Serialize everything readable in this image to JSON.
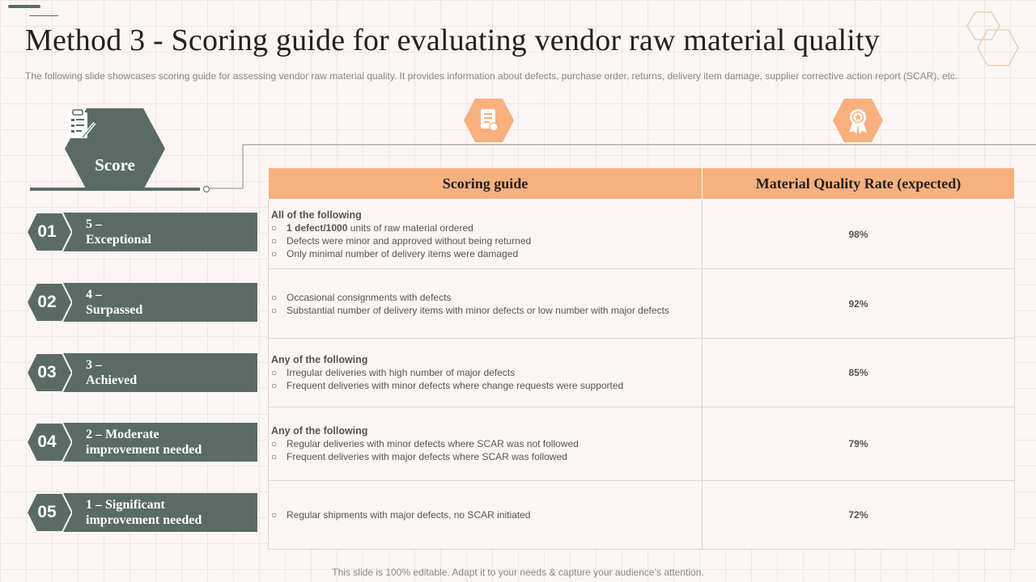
{
  "header": {
    "title": "Method 3 - Scoring guide for evaluating vendor raw material quality",
    "subtitle": "The following slide showcases scoring guide for assessing vendor raw material quality. It provides information about defects, purchase order, returns, delivery item damage, supplier corrective action report (SCAR), etc."
  },
  "score": {
    "label": "Score",
    "icon": "clipboard-pen-icon"
  },
  "levels": [
    {
      "num": "01",
      "line1": "5 –",
      "line2": "Exceptional"
    },
    {
      "num": "02",
      "line1": "4 –",
      "line2": "Surpassed"
    },
    {
      "num": "03",
      "line1": "3 –",
      "line2": "Achieved"
    },
    {
      "num": "04",
      "line1": "2 – Moderate",
      "line2": "improvement needed"
    },
    {
      "num": "05",
      "line1": "1 – Significant",
      "line2": "improvement needed"
    }
  ],
  "table": {
    "col1_header": "Scoring guide",
    "col2_header": "Material Quality Rate (expected)",
    "col1_icon": "document-checklist-icon",
    "col2_icon": "award-ribbon-icon",
    "rows": [
      {
        "heading": "All of the following",
        "bullet1_bold": "1 defect/1000",
        "bullet1_rest": " units of raw material ordered",
        "bullet2": "Defects were minor and approved  without being returned",
        "bullet3": "Only minimal number of delivery items were damaged",
        "rate": "98%"
      },
      {
        "bullet1": "Occasional consignments with defects",
        "bullet2": "Substantial number of delivery  items with minor defects or low number with major defects",
        "rate": "92%"
      },
      {
        "heading": "Any of the following",
        "bullet1": "Irregular  deliveries  with high number of major defects",
        "bullet2": "Frequent  deliveries  with minor defects where  change requests were  supported",
        "rate": "85%"
      },
      {
        "heading": "Any of the following",
        "bullet1": "Regular deliveries  with minor defects where SCAR was not followed",
        "bullet2": "Frequent  deliveries  with major defects where  SCAR was followed",
        "rate": "79%"
      },
      {
        "bullet1": "Regular shipments with major defects, no SCAR initiated",
        "rate": "72%"
      }
    ]
  },
  "bullet_glyph": "○",
  "footer": "This slide is 100% editable. Adapt it to your needs & capture your audience’s attention.",
  "colors": {
    "accent": "#f8b07f",
    "dark": "#5a6b65",
    "background": "#fbf6f3"
  }
}
